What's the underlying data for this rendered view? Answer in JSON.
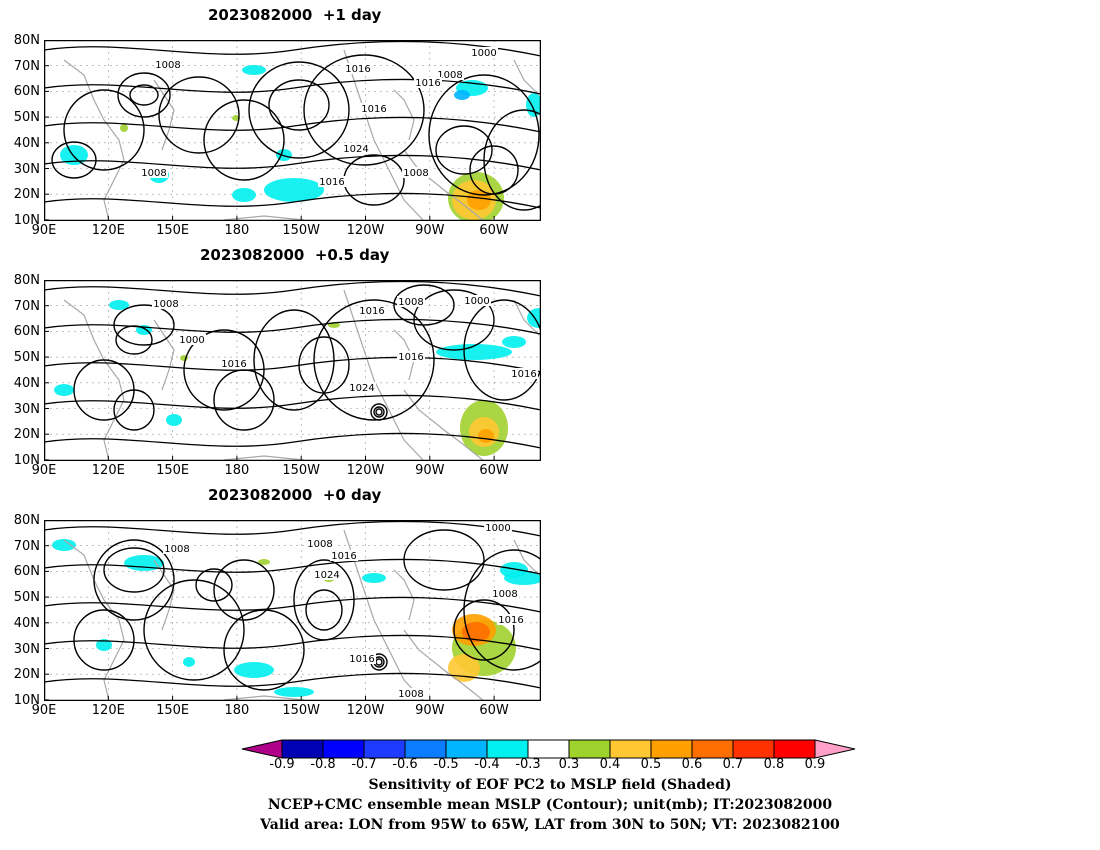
{
  "panels": [
    {
      "title": "2023082000  +1 day",
      "isobar_labels": [
        "1008",
        "1016",
        "1000",
        "1008",
        "1016",
        "1016",
        "1024",
        "1008",
        "1016",
        "1008",
        "1016"
      ]
    },
    {
      "title": "2023082000  +0.5 day",
      "isobar_labels": [
        "1008",
        "1016",
        "1008",
        "1000",
        "1000",
        "1016",
        "1016",
        "1024",
        "1016"
      ]
    },
    {
      "title": "2023082000  +0 day",
      "isobar_labels": [
        "1008",
        "1008",
        "1016",
        "1024",
        "1000",
        "1008",
        "1016",
        "1016",
        "1008"
      ]
    }
  ],
  "lat_ticks": [
    "80N",
    "70N",
    "60N",
    "50N",
    "40N",
    "30N",
    "20N",
    "10N"
  ],
  "lon_ticks": [
    "90E",
    "120E",
    "150E",
    "180",
    "150W",
    "120W",
    "90W",
    "60W"
  ],
  "colorbar": {
    "labels": [
      "-0.9",
      "-0.8",
      "-0.7",
      "-0.6",
      "-0.5",
      "-0.4",
      "-0.3",
      "0.3",
      "0.4",
      "0.5",
      "0.6",
      "0.7",
      "0.8",
      "0.9"
    ],
    "colors": [
      "#b0008a",
      "#0000b4",
      "#0000ff",
      "#1e3cff",
      "#0a7dff",
      "#00b4ff",
      "#00f0f0",
      "#ffffff",
      "#a0d22d",
      "#ffc832",
      "#ffa000",
      "#ff6e00",
      "#ff3200",
      "#ff0000",
      "#ffa0c8"
    ]
  },
  "captions": [
    "Sensitivity of EOF PC2 to MSLP field (Shaded)",
    "NCEP+CMC ensemble mean MSLP (Contour); unit(mb); IT:2023082000",
    "Valid area: LON from 95W to 65W, LAT from 30N to 50N; VT: 2023082100"
  ]
}
